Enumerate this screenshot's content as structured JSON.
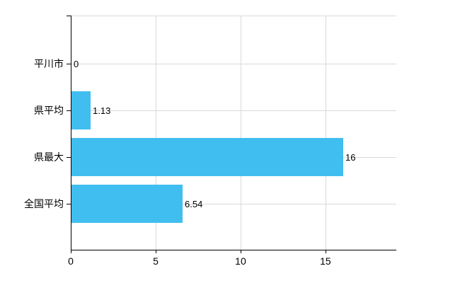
{
  "chart_data": {
    "type": "bar",
    "orientation": "horizontal",
    "title": "",
    "xlabel": "",
    "ylabel": "",
    "categories": [
      "平川市",
      "県平均",
      "県最大",
      "全国平均"
    ],
    "values": [
      0,
      1.13,
      16,
      6.54
    ],
    "value_labels": [
      "0",
      "1.13",
      "16",
      "6.54"
    ],
    "x_ticks": [
      {
        "value": 0,
        "label": "0"
      },
      {
        "value": 5,
        "label": "5"
      },
      {
        "value": 10,
        "label": "10"
      },
      {
        "value": 15,
        "label": "15"
      }
    ],
    "xlim": [
      0,
      19.17
    ],
    "grid": true,
    "legend": false,
    "colors": {
      "bar": "#41BEF0",
      "grid": "#D9D9D9",
      "axis": "#000000",
      "text": "#000000",
      "background": "#FFFFFF"
    }
  }
}
